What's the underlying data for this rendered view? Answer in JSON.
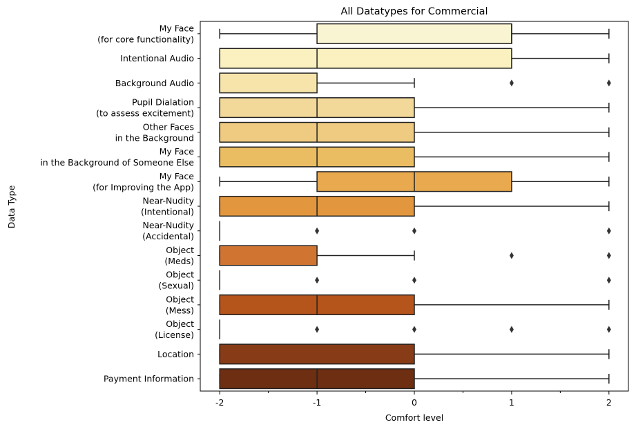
{
  "chart_data": {
    "type": "boxplot",
    "orientation": "horizontal",
    "title": "All Datatypes for Commercial",
    "xlabel": "Comfort level",
    "ylabel": "Data Type",
    "xlim": [
      -2.2,
      2.2
    ],
    "xticks": [
      -2,
      -1,
      0,
      1,
      2
    ],
    "xtick_labels": [
      "-2",
      "-1",
      "0",
      "1",
      "2"
    ],
    "grid": false,
    "series": [
      {
        "label": [
          "My Face",
          "(for core functionality)"
        ],
        "min": -2,
        "q1": -1,
        "median": 1,
        "q3": 1,
        "max": 2,
        "outliers": [],
        "color": "#f9f4d2"
      },
      {
        "label": [
          "Intentional Audio"
        ],
        "min": -2,
        "q1": -2,
        "median": -1,
        "q3": 1,
        "max": 2,
        "outliers": [],
        "color": "#fbf0bf"
      },
      {
        "label": [
          "Background Audio"
        ],
        "min": -2,
        "q1": -2,
        "median": -2,
        "q3": -1,
        "max": 0,
        "outliers": [
          1,
          2
        ],
        "color": "#f6e4ab"
      },
      {
        "label": [
          "Pupil Dialation",
          "(to assess excitement)"
        ],
        "min": -2,
        "q1": -2,
        "median": -1,
        "q3": 0,
        "max": 2,
        "outliers": [],
        "color": "#f2d99a"
      },
      {
        "label": [
          "Other Faces",
          "in the Background"
        ],
        "min": -2,
        "q1": -2,
        "median": -1,
        "q3": 0,
        "max": 2,
        "outliers": [],
        "color": "#eecb80"
      },
      {
        "label": [
          "My Face",
          "in the Background of Someone Else"
        ],
        "min": -2,
        "q1": -2,
        "median": -1,
        "q3": 0,
        "max": 2,
        "outliers": [],
        "color": "#ebbd62"
      },
      {
        "label": [
          "My Face",
          "(for Improving the App)"
        ],
        "min": -2,
        "q1": -1,
        "median": 0,
        "q3": 1,
        "max": 2,
        "outliers": [],
        "color": "#e8a94f"
      },
      {
        "label": [
          "Near-Nudity",
          "(Intentional)"
        ],
        "min": -2,
        "q1": -2,
        "median": -1,
        "q3": 0,
        "max": 2,
        "outliers": [],
        "color": "#e2973e"
      },
      {
        "label": [
          "Near-Nudity",
          "(Accidental)"
        ],
        "min": -2,
        "q1": -2,
        "median": -2,
        "q3": -2,
        "max": -2,
        "outliers": [
          -1,
          0,
          2
        ],
        "color": "#d98835"
      },
      {
        "label": [
          "Object",
          "(Meds)"
        ],
        "min": -2,
        "q1": -2,
        "median": -2,
        "q3": -1,
        "max": 0,
        "outliers": [
          1,
          2
        ],
        "color": "#d07531"
      },
      {
        "label": [
          "Object",
          "(Sexual)"
        ],
        "min": -2,
        "q1": -2,
        "median": -2,
        "q3": -2,
        "max": -2,
        "outliers": [
          -1,
          0,
          2
        ],
        "color": "#c4642a"
      },
      {
        "label": [
          "Object",
          "(Mess)"
        ],
        "min": -2,
        "q1": -2,
        "median": -1,
        "q3": 0,
        "max": 2,
        "outliers": [],
        "color": "#b5541b"
      },
      {
        "label": [
          "Object",
          "(License)"
        ],
        "min": -2,
        "q1": -2,
        "median": -2,
        "q3": -2,
        "max": -2,
        "outliers": [
          -1,
          0,
          1,
          2
        ],
        "color": "#a3481a"
      },
      {
        "label": [
          "Location"
        ],
        "min": -2,
        "q1": -2,
        "median": -2,
        "q3": 0,
        "max": 2,
        "outliers": [],
        "color": "#883b17"
      },
      {
        "label": [
          "Payment Information"
        ],
        "min": -2,
        "q1": -2,
        "median": -1,
        "q3": 0,
        "max": 2,
        "outliers": [],
        "color": "#6d2e12"
      }
    ]
  }
}
